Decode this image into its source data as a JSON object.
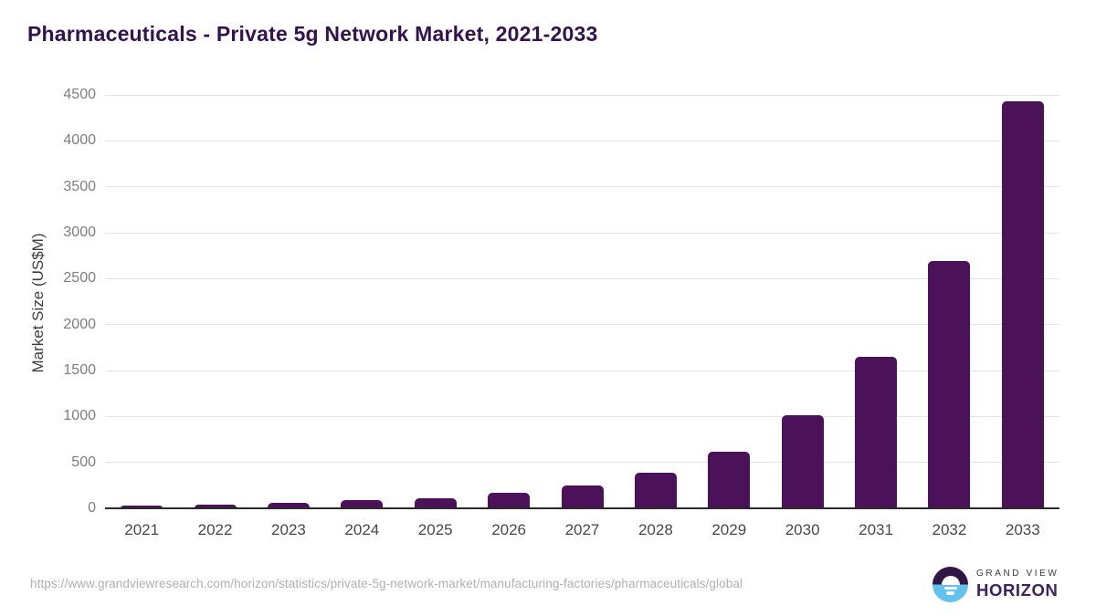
{
  "header": {
    "title": "Pharmaceuticals - Private 5g Network Market, 2021-2033"
  },
  "chart_data": {
    "type": "bar",
    "title": "Pharmaceuticals - Private 5g Network Market, 2021-2033",
    "categories": [
      "2021",
      "2022",
      "2023",
      "2024",
      "2025",
      "2026",
      "2027",
      "2028",
      "2029",
      "2030",
      "2031",
      "2032",
      "2033"
    ],
    "values": [
      28,
      42,
      60,
      85,
      110,
      165,
      253,
      385,
      620,
      1010,
      1650,
      2695,
      4430
    ],
    "xlabel": "",
    "ylabel": "Market Size (US$M)",
    "ylim": [
      0,
      4500
    ],
    "yticks": [
      0,
      500,
      1000,
      1500,
      2000,
      2500,
      3000,
      3500,
      4000,
      4500
    ],
    "grid": "horizontal",
    "legend": "none",
    "bar_color": "#4b1159"
  },
  "footer": {
    "source_url": "https://www.grandviewresearch.com/horizon/statistics/private-5g-network-market/manufacturing-factories/pharmaceuticals/global",
    "logo": {
      "line1": "GRAND VIEW",
      "line2": "HORIZON"
    }
  },
  "colors": {
    "title_text": "#33124e",
    "bar": "#4b1159",
    "gridline": "#e4e4e4",
    "axis_line": "#2b2b2b",
    "y_tick_text": "#7d7d7d",
    "x_tick_text": "#484848",
    "source_text": "#b0b0b0",
    "logo_purple": "#2e1744",
    "logo_blue": "#62c2ee"
  }
}
